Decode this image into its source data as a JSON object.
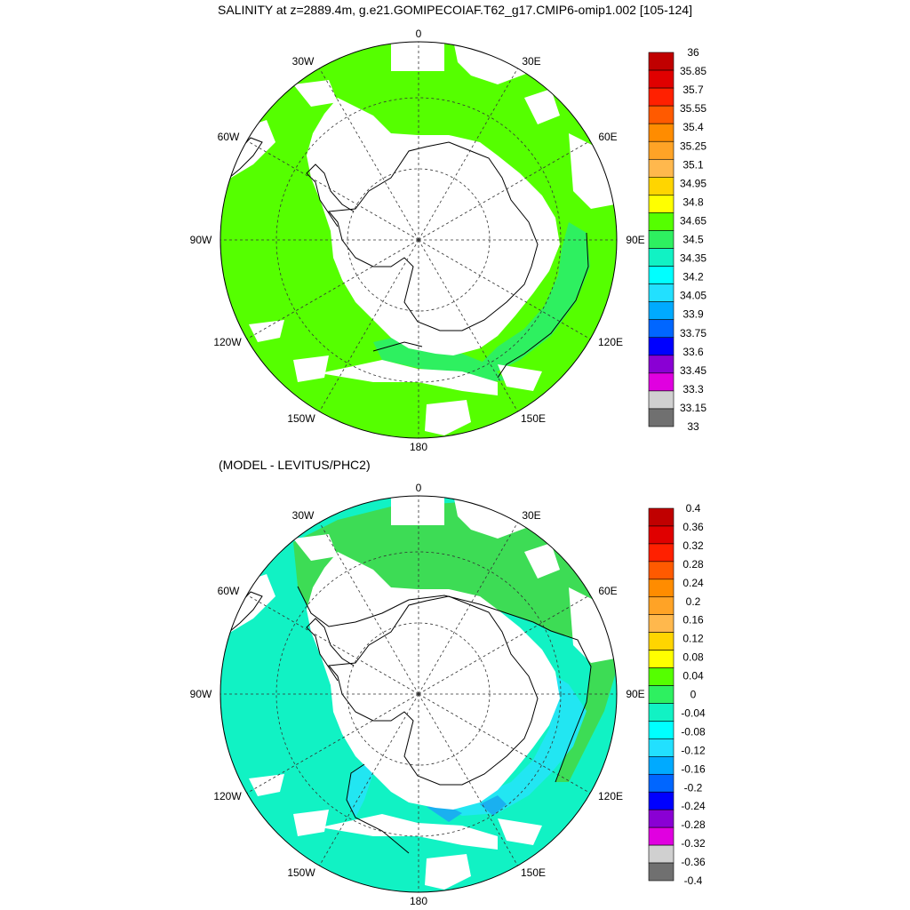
{
  "title": "SALINITY at z=2889.4m, g.e21.GOMIPECOIAF.T62_g17.CMIP6-omip1.002 [105-124]",
  "subtitle": "(MODEL - LEVITUS/PHC2)",
  "longitude_labels": {
    "0": "0",
    "30E": "30E",
    "60E": "60E",
    "90E": "90E",
    "120E": "120E",
    "150E": "150E",
    "180": "180",
    "150W": "150W",
    "120W": "120W",
    "90W": "90W",
    "60W": "60W",
    "30W": "30W"
  },
  "colors": {
    "land": "#ffffff",
    "coast": "#000000",
    "top_field": "#55ff00",
    "top_warm_patch": "#2ef060",
    "diff_neutral": "#11f2c4",
    "diff_positive": "#3ddc55",
    "diff_negative_light": "#22e6f2",
    "diff_negative": "#1ab0f0"
  },
  "colorbar_top": {
    "labels": [
      "36",
      "35.85",
      "35.7",
      "35.55",
      "35.4",
      "35.25",
      "35.1",
      "34.95",
      "34.8",
      "34.65",
      "34.5",
      "34.35",
      "34.2",
      "34.05",
      "33.9",
      "33.75",
      "33.6",
      "33.45",
      "33.3",
      "33.15",
      "33"
    ],
    "colors": [
      "#c00000",
      "#e00000",
      "#ff2000",
      "#ff5a00",
      "#ff8c00",
      "#ffa326",
      "#ffb84d",
      "#ffd500",
      "#ffff00",
      "#55ff00",
      "#2ef060",
      "#11f2c4",
      "#00ffff",
      "#22e0ff",
      "#00aaff",
      "#0066ff",
      "#0000ff",
      "#8a00d4",
      "#e000e0",
      "#d0d0d0",
      "#707070"
    ]
  },
  "colorbar_bottom": {
    "labels": [
      "0.4",
      "0.36",
      "0.32",
      "0.28",
      "0.24",
      "0.2",
      "0.16",
      "0.12",
      "0.08",
      "0.04",
      "0",
      "-0.04",
      "-0.08",
      "-0.12",
      "-0.16",
      "-0.2",
      "-0.24",
      "-0.28",
      "-0.32",
      "-0.36",
      "-0.4"
    ],
    "colors": [
      "#c00000",
      "#e00000",
      "#ff2000",
      "#ff5a00",
      "#ff8c00",
      "#ffa326",
      "#ffb84d",
      "#ffd500",
      "#ffff00",
      "#55ff00",
      "#2ef060",
      "#11f2c4",
      "#00ffff",
      "#22e0ff",
      "#00aaff",
      "#0066ff",
      "#0000ff",
      "#8a00d4",
      "#e000e0",
      "#d0d0d0",
      "#707070"
    ]
  }
}
